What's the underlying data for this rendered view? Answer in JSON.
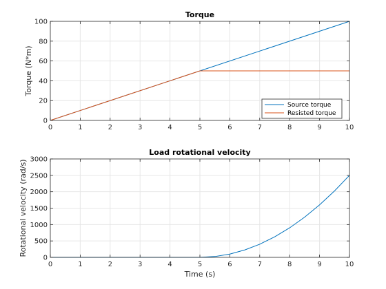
{
  "chart_data": [
    {
      "type": "line",
      "title": "Torque",
      "xlabel": "",
      "ylabel": "Torque (N*m)",
      "xlim": [
        0,
        10
      ],
      "ylim": [
        0,
        100
      ],
      "xticks": [
        0,
        1,
        2,
        3,
        4,
        5,
        6,
        7,
        8,
        9,
        10
      ],
      "yticks": [
        0,
        20,
        40,
        60,
        80,
        100
      ],
      "grid": true,
      "legend": "bottom-right",
      "series": [
        {
          "name": "Source torque",
          "color": "#0072BD",
          "x": [
            0,
            10
          ],
          "y": [
            0,
            100
          ]
        },
        {
          "name": "Resisted torque",
          "color": "#D95319",
          "x": [
            0,
            5,
            10
          ],
          "y": [
            0,
            50,
            50
          ]
        }
      ]
    },
    {
      "type": "line",
      "title": "Load rotational velocity",
      "xlabel": "Time (s)",
      "ylabel": "Rotational velocity (rad/s)",
      "xlim": [
        0,
        10
      ],
      "ylim": [
        0,
        3000
      ],
      "xticks": [
        0,
        1,
        2,
        3,
        4,
        5,
        6,
        7,
        8,
        9,
        10
      ],
      "yticks": [
        0,
        500,
        1000,
        1500,
        2000,
        2500,
        3000
      ],
      "grid": true,
      "series": [
        {
          "color": "#0072BD",
          "x": [
            0,
            1,
            2,
            3,
            4,
            5,
            5.5,
            6,
            6.5,
            7,
            7.5,
            8,
            8.5,
            9,
            9.5,
            10
          ],
          "y": [
            0,
            0,
            0,
            0,
            0,
            0,
            25,
            100,
            225,
            400,
            625,
            900,
            1225,
            1600,
            2025,
            2500
          ]
        }
      ]
    }
  ]
}
